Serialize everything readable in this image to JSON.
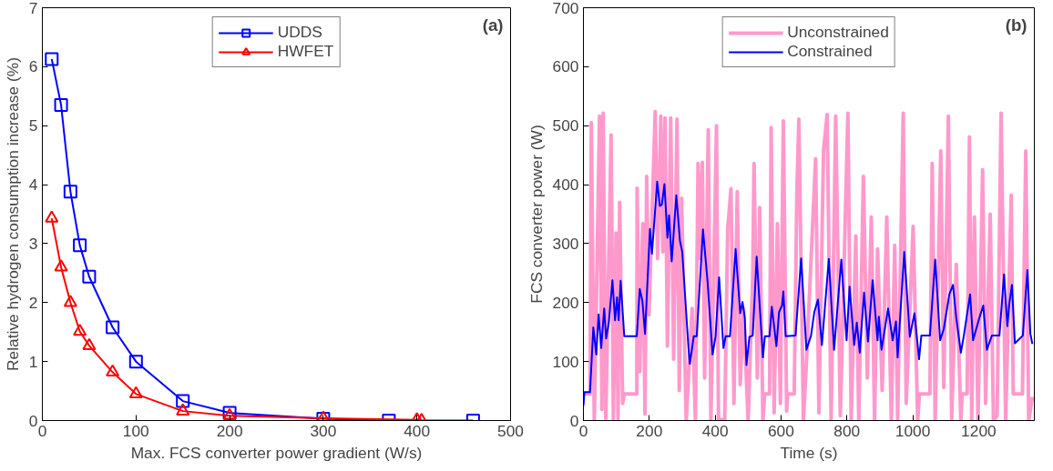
{
  "chart_data": [
    {
      "type": "line",
      "xlabel": "Max. FCS converter power gradient (W/s)",
      "ylabel": "Relative hydrogen consumption increase (%)",
      "annotations": [
        "(a)"
      ],
      "xlim": [
        0,
        500
      ],
      "xticks": [
        0,
        100,
        200,
        300,
        400,
        500
      ],
      "ylim": [
        0,
        7
      ],
      "yticks": [
        0,
        1,
        2,
        3,
        4,
        5,
        6,
        7
      ],
      "grid": false,
      "legend": "top",
      "series": [
        {
          "name": "UDDS",
          "color": "#0000ff",
          "marker": "square",
          "x": [
            10,
            20,
            30,
            40,
            50,
            75,
            100,
            150,
            200,
            300,
            370,
            460
          ],
          "values": [
            6.13,
            5.35,
            3.88,
            2.97,
            2.44,
            1.58,
            1.0,
            0.33,
            0.13,
            0.03,
            0.0,
            0.0
          ]
        },
        {
          "name": "HWFET",
          "color": "#ff0000",
          "marker": "triangle",
          "x": [
            10,
            20,
            30,
            40,
            50,
            75,
            100,
            150,
            200,
            300,
            400,
            405
          ],
          "values": [
            3.43,
            2.6,
            2.0,
            1.51,
            1.27,
            0.82,
            0.45,
            0.16,
            0.08,
            0.04,
            0.01,
            0.0
          ]
        }
      ]
    },
    {
      "type": "line",
      "xlabel": "Time (s)",
      "ylabel": "FCS converter power (W)",
      "annotations": [
        "(b)"
      ],
      "xlim": [
        0,
        1369
      ],
      "xticks": [
        0,
        200,
        400,
        600,
        800,
        1000,
        1200
      ],
      "ylim": [
        0,
        700
      ],
      "yticks": [
        0,
        100,
        200,
        300,
        400,
        500,
        600,
        700
      ],
      "grid": false,
      "legend": "top",
      "series": [
        {
          "name": "Unconstrained",
          "color": "#ff99cc",
          "marker": "none",
          "x": [
            0,
            20,
            24,
            33,
            49,
            56,
            60,
            68,
            84,
            91,
            99,
            105,
            110,
            119,
            124,
            162,
            163,
            171,
            180,
            187,
            192,
            199,
            218,
            225,
            235,
            241,
            248,
            255,
            265,
            274,
            284,
            291,
            298,
            312,
            330,
            340,
            348,
            355,
            361,
            368,
            379,
            387,
            404,
            410,
            429,
            438,
            448,
            457,
            467,
            476,
            486,
            500,
            514,
            518,
            528,
            535,
            545,
            550,
            565,
            570,
            579,
            589,
            598,
            607,
            617,
            620,
            640,
            648,
            654,
            668,
            677,
            705,
            715,
            729,
            740,
            752,
            766,
            780,
            803,
            813,
            827,
            836,
            850,
            862,
            874,
            884,
            893,
            907,
            921,
            935,
            945,
            954,
            971,
            980,
            1001,
            1015,
            1020,
            1052,
            1059,
            1068,
            1085,
            1094,
            1108,
            1118,
            1132,
            1146,
            1150,
            1165,
            1172,
            1179,
            1187,
            1198,
            1212,
            1221,
            1235,
            1245,
            1256,
            1268,
            1282,
            1299,
            1305,
            1333,
            1343,
            1352,
            1363
          ],
          "values": [
            45,
            45,
            505,
            0,
            516,
            19,
            521,
            3,
            484,
            0,
            318,
            3,
            370,
            29,
            45,
            45,
            394,
            83,
            334,
            11,
            414,
            179,
            524,
            275,
            516,
            286,
            513,
            126,
            513,
            104,
            511,
            51,
            377,
            0,
            190,
            0,
            436,
            275,
            438,
            72,
            493,
            0,
            500,
            3,
            0,
            324,
            393,
            29,
            388,
            61,
            190,
            0,
            243,
            436,
            72,
            361,
            0,
            45,
            45,
            497,
            13,
            334,
            29,
            508,
            16,
            45,
            45,
            385,
            511,
            0,
            99,
            444,
            13,
            457,
            519,
            0,
            516,
            8,
            521,
            0,
            313,
            0,
            414,
            72,
            345,
            0,
            291,
            51,
            345,
            0,
            297,
            3,
            521,
            29,
            329,
            0,
            45,
            45,
            436,
            0,
            457,
            56,
            516,
            3,
            265,
            0,
            45,
            45,
            481,
            0,
            345,
            0,
            425,
            29,
            350,
            0,
            8,
            521,
            0,
            382,
            45,
            45,
            457,
            0,
            40
          ]
        },
        {
          "name": "Constrained",
          "color": "#0000ff",
          "marker": "none",
          "x": [
            0,
            3,
            20,
            30,
            39,
            46,
            54,
            63,
            69,
            77,
            88,
            96,
            102,
            107,
            113,
            124,
            162,
            171,
            179,
            187,
            202,
            208,
            224,
            232,
            238,
            246,
            255,
            260,
            268,
            282,
            293,
            300,
            319,
            323,
            335,
            344,
            363,
            377,
            392,
            401,
            412,
            425,
            432,
            445,
            462,
            476,
            483,
            490,
            495,
            504,
            514,
            526,
            545,
            551,
            565,
            572,
            586,
            594,
            603,
            607,
            614,
            644,
            661,
            677,
            691,
            701,
            712,
            724,
            745,
            761,
            783,
            799,
            808,
            822,
            830,
            839,
            852,
            864,
            878,
            893,
            897,
            905,
            925,
            939,
            949,
            954,
            974,
            991,
            1005,
            1019,
            1026,
            1052,
            1068,
            1083,
            1094,
            1111,
            1122,
            1132,
            1146,
            1155,
            1174,
            1183,
            1202,
            1214,
            1225,
            1240,
            1263,
            1277,
            1287,
            1293,
            1301,
            1310,
            1334,
            1348,
            1357,
            1363
          ],
          "values": [
            25,
            48,
            48,
            158,
            112,
            180,
            123,
            190,
            139,
            166,
            238,
            170,
            209,
            170,
            237,
            143,
            143,
            223,
            203,
            147,
            325,
            283,
            405,
            364,
            366,
            401,
            310,
            348,
            270,
            382,
            305,
            286,
            123,
            96,
            143,
            143,
            324,
            235,
            112,
            142,
            243,
            123,
            143,
            143,
            291,
            182,
            201,
            174,
            94,
            142,
            144,
            278,
            107,
            143,
            143,
            193,
            126,
            184,
            195,
            219,
            143,
            144,
            275,
            120,
            144,
            184,
            205,
            128,
            274,
            120,
            273,
            136,
            227,
            128,
            166,
            115,
            217,
            134,
            238,
            136,
            176,
            120,
            190,
            136,
            168,
            107,
            286,
            142,
            182,
            104,
            144,
            144,
            273,
            136,
            155,
            214,
            230,
            174,
            115,
            144,
            214,
            136,
            174,
            195,
            120,
            144,
            144,
            248,
            160,
            198,
            230,
            131,
            144,
            255,
            147,
            130
          ]
        }
      ]
    }
  ]
}
